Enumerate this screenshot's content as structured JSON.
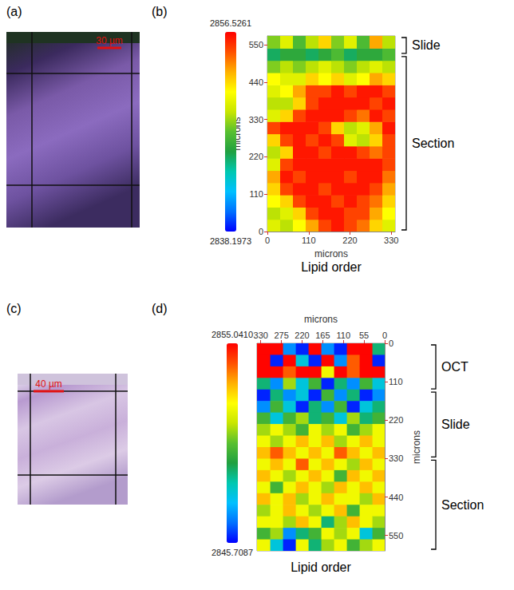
{
  "micrographs": [
    {
      "panel": "(a)",
      "scale_bar": "30 µm"
    },
    {
      "panel": "(c)",
      "scale_bar": "40 µm"
    }
  ],
  "chart_data": [
    {
      "type": "heatmap",
      "panel": "(b)",
      "title": "Lipid order",
      "xlabel": "microns",
      "ylabel": "microns",
      "xlim": [
        0,
        340
      ],
      "xticks": [
        0,
        110,
        220,
        330
      ],
      "ylim": [
        0,
        576
      ],
      "yticks": [
        0,
        110,
        220,
        330,
        440,
        550
      ],
      "x": [
        17,
        51,
        85,
        119,
        153,
        187,
        221,
        255,
        289,
        323
      ],
      "y": [
        18,
        54,
        90,
        126,
        162,
        198,
        234,
        270,
        306,
        342,
        378,
        414,
        450,
        486,
        522,
        558
      ],
      "values": [
        [
          2850,
          2849,
          2851,
          2853,
          2855,
          2856,
          2855,
          2854,
          2852,
          2850
        ],
        [
          2849,
          2850,
          2852,
          2855,
          2856,
          2856,
          2855,
          2855,
          2853,
          2851
        ],
        [
          2851,
          2852,
          2855,
          2856,
          2856,
          2855,
          2856,
          2855,
          2854,
          2852
        ],
        [
          2852,
          2855,
          2856,
          2856,
          2855,
          2856,
          2856,
          2856,
          2855,
          2853
        ],
        [
          2853,
          2856,
          2855,
          2856,
          2856,
          2856,
          2855,
          2856,
          2856,
          2854
        ],
        [
          2850,
          2855,
          2856,
          2856,
          2856,
          2856,
          2856,
          2856,
          2856,
          2855
        ],
        [
          2849,
          2852,
          2856,
          2856,
          2855,
          2856,
          2856,
          2855,
          2854,
          2855
        ],
        [
          2852,
          2855,
          2856,
          2855,
          2856,
          2855,
          2850,
          2849,
          2852,
          2855
        ],
        [
          2855,
          2856,
          2856,
          2856,
          2855,
          2852,
          2849,
          2850,
          2853,
          2856
        ],
        [
          2850,
          2852,
          2855,
          2856,
          2856,
          2856,
          2855,
          2854,
          2856,
          2855
        ],
        [
          2849,
          2849,
          2852,
          2855,
          2856,
          2856,
          2856,
          2856,
          2855,
          2856
        ],
        [
          2850,
          2851,
          2853,
          2855,
          2855,
          2856,
          2855,
          2856,
          2856,
          2855
        ],
        [
          2851,
          2850,
          2850,
          2852,
          2851,
          2852,
          2850,
          2851,
          2853,
          2852
        ],
        [
          2848,
          2849,
          2848,
          2849,
          2850,
          2849,
          2848,
          2849,
          2850,
          2849
        ],
        [
          2845,
          2846,
          2846,
          2845,
          2846,
          2847,
          2845,
          2846,
          2846,
          2847
        ],
        [
          2848,
          2850,
          2847,
          2849,
          2852,
          2848,
          2850,
          2847,
          2853,
          2849
        ]
      ],
      "colorbar": {
        "range": [
          2838.1973,
          2856.5261
        ],
        "ticks": [
          2838.1973,
          2856.5261
        ]
      },
      "regions": [
        {
          "label": "Slide",
          "range": [
            520,
            576
          ]
        },
        {
          "label": "Section",
          "range": [
            0,
            520
          ]
        }
      ]
    },
    {
      "type": "heatmap",
      "panel": "(d)",
      "title": "Lipid order",
      "xlabel": "microns",
      "ylabel": "microns",
      "xlim": [
        340,
        0
      ],
      "xticks": [
        0,
        55,
        110,
        165,
        220,
        275,
        330
      ],
      "ylim": [
        594,
        0
      ],
      "yticks": [
        0,
        110,
        220,
        330,
        440,
        550
      ],
      "x": [
        17,
        51,
        85,
        119,
        153,
        187,
        221,
        255,
        289,
        323
      ],
      "y": [
        16.5,
        49.5,
        82.5,
        115.5,
        148.5,
        181.5,
        214.5,
        247.5,
        280.5,
        313.5,
        346.5,
        379.5,
        412.5,
        445.5,
        478.5,
        511.5,
        544.5,
        577.5
      ],
      "values": [
        [
          2849,
          2855,
          2855,
          2846,
          2847,
          2855,
          2846,
          2847,
          2855,
          2855
        ],
        [
          2846,
          2855,
          2854,
          2847,
          2855,
          2846,
          2848,
          2855,
          2846,
          2855
        ],
        [
          2855,
          2855,
          2854,
          2855,
          2852,
          2855,
          2855,
          2854,
          2855,
          2855
        ],
        [
          2848,
          2850,
          2847,
          2849,
          2846,
          2850,
          2848,
          2851,
          2847,
          2849
        ],
        [
          2847,
          2846,
          2849,
          2847,
          2850,
          2846,
          2848,
          2847,
          2849,
          2846
        ],
        [
          2849,
          2848,
          2846,
          2850,
          2847,
          2849,
          2846,
          2848,
          2850,
          2847
        ],
        [
          2850,
          2849,
          2851,
          2848,
          2850,
          2849,
          2851,
          2850,
          2848,
          2850
        ],
        [
          2852,
          2851,
          2850,
          2852,
          2851,
          2852,
          2850,
          2851,
          2852,
          2851
        ],
        [
          2852,
          2853,
          2852,
          2851,
          2853,
          2852,
          2853,
          2852,
          2851,
          2852
        ],
        [
          2853,
          2852,
          2853,
          2854,
          2852,
          2853,
          2852,
          2853,
          2854,
          2853
        ],
        [
          2852,
          2853,
          2851,
          2852,
          2853,
          2852,
          2854,
          2852,
          2853,
          2852
        ],
        [
          2853,
          2852,
          2853,
          2850,
          2852,
          2853,
          2852,
          2851,
          2852,
          2853
        ],
        [
          2852,
          2853,
          2852,
          2853,
          2851,
          2852,
          2853,
          2852,
          2850,
          2852
        ],
        [
          2853,
          2851,
          2852,
          2852,
          2853,
          2852,
          2851,
          2853,
          2852,
          2853
        ],
        [
          2852,
          2852,
          2850,
          2853,
          2852,
          2851,
          2852,
          2853,
          2852,
          2851
        ],
        [
          2851,
          2852,
          2853,
          2851,
          2849,
          2852,
          2853,
          2851,
          2852,
          2852
        ],
        [
          2850,
          2848,
          2852,
          2851,
          2852,
          2850,
          2849,
          2847,
          2851,
          2850
        ],
        [
          2852,
          2851,
          2850,
          2852,
          2851,
          2849,
          2852,
          2846,
          2848,
          2852
        ]
      ],
      "colorbar": {
        "range": [
          2845.7087,
          2855.041
        ],
        "ticks": [
          2845.7087,
          {
            "value": 2855.041,
            "label": "2855.0410"
          }
        ]
      },
      "regions": [
        {
          "label": "OCT",
          "range": [
            0,
            135
          ]
        },
        {
          "label": "Slide",
          "range": [
            135,
            330
          ]
        },
        {
          "label": "Section",
          "range": [
            330,
            594
          ]
        }
      ]
    }
  ]
}
